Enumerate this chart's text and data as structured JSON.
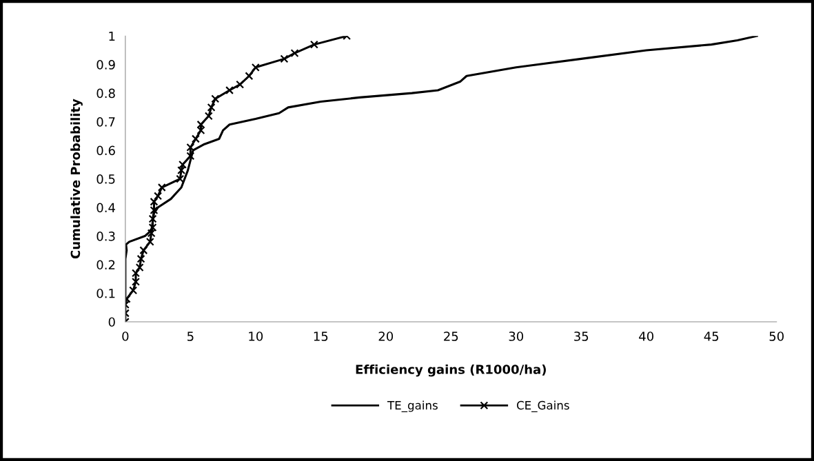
{
  "chart_data": {
    "type": "line",
    "xlabel": "Efficiency gains (R1000/ha)",
    "ylabel": "Cumulative Probability",
    "xlim": [
      0,
      50
    ],
    "xticks": [
      0,
      5,
      10,
      15,
      20,
      25,
      30,
      35,
      40,
      45,
      50
    ],
    "ylim": [
      0,
      1
    ],
    "yticks": [
      0,
      0.1,
      0.2,
      0.3,
      0.4,
      0.5,
      0.6,
      0.7,
      0.8,
      0.9,
      1
    ],
    "grid": false,
    "legend": "bottom",
    "line_style": "solid",
    "series": [
      {
        "name": "TE_gains",
        "color": "#000000",
        "marker": "none",
        "x": [
          0,
          0,
          0.1,
          0.05,
          0.3,
          1.5,
          2.0,
          2.2,
          2.5,
          3.5,
          4.3,
          4.8,
          5.2,
          6.0,
          7.2,
          7.5,
          8.0,
          10,
          11.8,
          12.5,
          15,
          18,
          22,
          24,
          25.7,
          26.2,
          30,
          35,
          40,
          45,
          47,
          48.5
        ],
        "values": [
          0.08,
          0.22,
          0.25,
          0.27,
          0.28,
          0.3,
          0.32,
          0.38,
          0.4,
          0.43,
          0.47,
          0.53,
          0.6,
          0.62,
          0.64,
          0.67,
          0.69,
          0.71,
          0.73,
          0.75,
          0.77,
          0.785,
          0.8,
          0.81,
          0.84,
          0.86,
          0.89,
          0.92,
          0.95,
          0.97,
          0.985,
          1.0
        ]
      },
      {
        "name": "CE_Gains",
        "color": "#000000",
        "marker": "cross",
        "x": [
          0,
          0,
          0,
          0.1,
          0.6,
          0.8,
          0.8,
          1.1,
          1.2,
          1.4,
          1.9,
          2.0,
          2.1,
          2.1,
          2.2,
          2.2,
          2.5,
          2.8,
          4.2,
          4.3,
          4.4,
          5.0,
          5.0,
          5.4,
          5.8,
          5.8,
          6.4,
          6.6,
          6.9,
          8.0,
          8.8,
          9.5,
          10.0,
          12.2,
          13.0,
          14.5,
          17.0
        ],
        "values": [
          0,
          0.03,
          0.06,
          0.08,
          0.11,
          0.14,
          0.17,
          0.19,
          0.22,
          0.25,
          0.28,
          0.31,
          0.33,
          0.36,
          0.39,
          0.42,
          0.44,
          0.47,
          0.5,
          0.53,
          0.55,
          0.58,
          0.61,
          0.64,
          0.67,
          0.69,
          0.72,
          0.75,
          0.78,
          0.81,
          0.83,
          0.86,
          0.89,
          0.92,
          0.94,
          0.97,
          1.0
        ]
      }
    ]
  }
}
